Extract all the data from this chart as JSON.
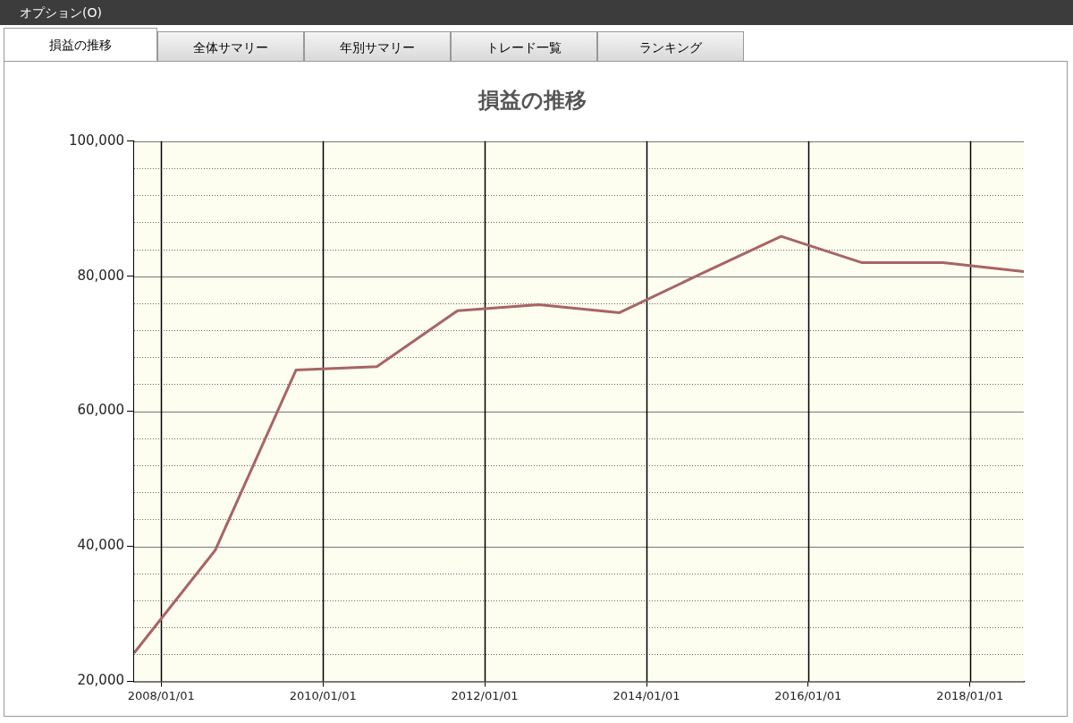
{
  "chart_data": {
    "type": "line",
    "title": "損益の推移",
    "annotations": [
      "オプション(O)",
      "損益の推移",
      "全体サマリー",
      "年別サマリー",
      "トレード一覧",
      "ランキング"
    ],
    "x": [
      "2007-09",
      "2008-09",
      "2009-09",
      "2010-09",
      "2011-09",
      "2012-09",
      "2013-09",
      "2014-09",
      "2015-09",
      "2016-09",
      "2017-09",
      "2018-09"
    ],
    "series": [
      {
        "color": "#a86464",
        "values": [
          24200,
          39400,
          66100,
          66600,
          74900,
          75800,
          74600,
          80300,
          85900,
          82000,
          82000,
          80700
        ]
      }
    ],
    "xlim": [
      "2007-09",
      "2018-09"
    ],
    "xticks": [
      {
        "value": "2008-01-01",
        "label": "2008/01/01"
      },
      {
        "value": "2010-01-01",
        "label": "2010/01/01"
      },
      {
        "value": "2012-01-01",
        "label": "2012/01/01"
      },
      {
        "value": "2014-01-01",
        "label": "2014/01/01"
      },
      {
        "value": "2016-01-01",
        "label": "2016/01/01"
      },
      {
        "value": "2018-01-01",
        "label": "2018/01/01"
      }
    ],
    "ylim": [
      20000,
      100000
    ],
    "yticks": [
      {
        "value": 20000,
        "label": "20,000"
      },
      {
        "value": 24000,
        "label": null
      },
      {
        "value": 28000,
        "label": null
      },
      {
        "value": 32000,
        "label": null
      },
      {
        "value": 36000,
        "label": null
      },
      {
        "value": 40000,
        "label": "40,000"
      },
      {
        "value": 44000,
        "label": null
      },
      {
        "value": 48000,
        "label": null
      },
      {
        "value": 52000,
        "label": null
      },
      {
        "value": 56000,
        "label": null
      },
      {
        "value": 60000,
        "label": "60,000"
      },
      {
        "value": 64000,
        "label": null
      },
      {
        "value": 68000,
        "label": null
      },
      {
        "value": 72000,
        "label": null
      },
      {
        "value": 76000,
        "label": null
      },
      {
        "value": 80000,
        "label": "80,000"
      },
      {
        "value": 84000,
        "label": null
      },
      {
        "value": 88000,
        "label": null
      },
      {
        "value": 92000,
        "label": null
      },
      {
        "value": 96000,
        "label": null
      },
      {
        "value": 100000,
        "label": "100,000"
      }
    ],
    "grid": true,
    "legend": false,
    "marker": "none",
    "line_style": "solid"
  }
}
